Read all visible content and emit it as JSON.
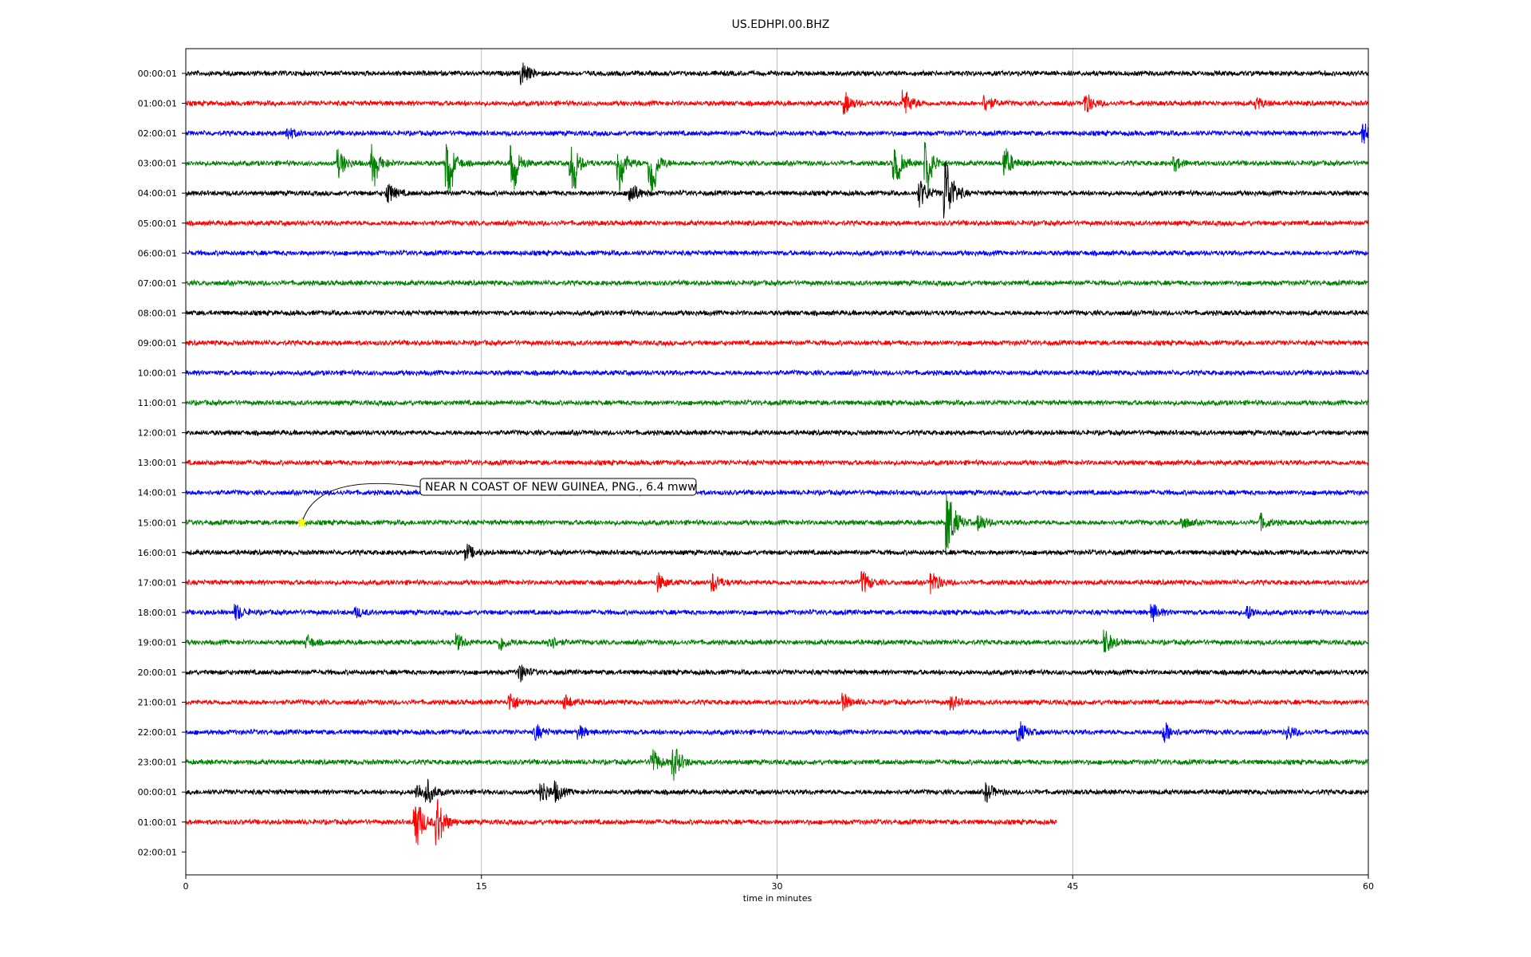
{
  "chart_data": {
    "type": "line",
    "title": "US.EDHPI.00.BHZ",
    "xlabel": "time in minutes",
    "ylabel": "",
    "xlim": [
      0,
      60
    ],
    "xticks": [
      "0",
      "15",
      "30",
      "45",
      "60"
    ],
    "x_gridlines": [
      15,
      30,
      45
    ],
    "grid": "vertical gridlines at x ticks",
    "plot_type": "dayplot (one trace per hour)",
    "colors": [
      "#000000",
      "#ff0000",
      "#0000ff",
      "#008000"
    ],
    "rows": [
      {
        "label": "00:00:01",
        "end_minute": 60,
        "color": "#000000",
        "events": [
          {
            "t": 17.1,
            "a": 14
          }
        ]
      },
      {
        "label": "01:00:01",
        "end_minute": 60,
        "color": "#ff0000",
        "events": [
          {
            "t": 33.5,
            "a": 12
          },
          {
            "t": 36.5,
            "a": 16
          },
          {
            "t": 40.6,
            "a": 10
          },
          {
            "t": 45.7,
            "a": 12
          },
          {
            "t": 54.4,
            "a": 6
          }
        ]
      },
      {
        "label": "02:00:01",
        "end_minute": 60,
        "color": "#0000ff",
        "events": [
          {
            "t": 5.2,
            "a": 7
          },
          {
            "t": 59.8,
            "a": 12
          }
        ]
      },
      {
        "label": "03:00:01",
        "end_minute": 60,
        "color": "#008000",
        "events": [
          {
            "t": 7.8,
            "a": 16
          },
          {
            "t": 9.5,
            "a": -22
          },
          {
            "t": 13.3,
            "a": -28
          },
          {
            "t": 16.6,
            "a": -24
          },
          {
            "t": 19.6,
            "a": -26
          },
          {
            "t": 22.0,
            "a": -24
          },
          {
            "t": 23.6,
            "a": -30
          },
          {
            "t": 36.0,
            "a": -22
          },
          {
            "t": 37.6,
            "a": -28
          },
          {
            "t": 41.6,
            "a": 18
          },
          {
            "t": 50.2,
            "a": 8
          }
        ]
      },
      {
        "label": "04:00:01",
        "end_minute": 60,
        "color": "#000000",
        "events": [
          {
            "t": 10.3,
            "a": 12
          },
          {
            "t": 22.6,
            "a": 14
          },
          {
            "t": 37.3,
            "a": 16
          },
          {
            "t": 38.6,
            "a": 44
          }
        ]
      },
      {
        "label": "05:00:01",
        "end_minute": 60,
        "color": "#ff0000",
        "events": []
      },
      {
        "label": "06:00:01",
        "end_minute": 60,
        "color": "#0000ff",
        "events": []
      },
      {
        "label": "07:00:01",
        "end_minute": 60,
        "color": "#008000",
        "events": []
      },
      {
        "label": "08:00:01",
        "end_minute": 60,
        "color": "#000000",
        "events": []
      },
      {
        "label": "09:00:01",
        "end_minute": 60,
        "color": "#ff0000",
        "events": []
      },
      {
        "label": "10:00:01",
        "end_minute": 60,
        "color": "#0000ff",
        "events": []
      },
      {
        "label": "11:00:01",
        "end_minute": 60,
        "color": "#008000",
        "events": []
      },
      {
        "label": "12:00:01",
        "end_minute": 60,
        "color": "#000000",
        "events": []
      },
      {
        "label": "13:00:01",
        "end_minute": 60,
        "color": "#ff0000",
        "events": []
      },
      {
        "label": "14:00:01",
        "end_minute": 60,
        "color": "#0000ff",
        "events": []
      },
      {
        "label": "15:00:01",
        "end_minute": 60,
        "color": "#008000",
        "events": [
          {
            "t": 38.7,
            "a": 40
          },
          {
            "t": 40.3,
            "a": 10
          },
          {
            "t": 50.6,
            "a": 7
          },
          {
            "t": 54.6,
            "a": 9
          }
        ]
      },
      {
        "label": "16:00:01",
        "end_minute": 60,
        "color": "#000000",
        "events": [
          {
            "t": 14.3,
            "a": 9
          }
        ]
      },
      {
        "label": "17:00:01",
        "end_minute": 60,
        "color": "#ff0000",
        "events": [
          {
            "t": 24.0,
            "a": 10
          },
          {
            "t": 26.8,
            "a": 11
          },
          {
            "t": 34.4,
            "a": 13
          },
          {
            "t": 37.9,
            "a": 14
          }
        ]
      },
      {
        "label": "18:00:01",
        "end_minute": 60,
        "color": "#0000ff",
        "events": [
          {
            "t": 2.6,
            "a": 9
          },
          {
            "t": 8.7,
            "a": 5
          },
          {
            "t": 49.1,
            "a": 9
          },
          {
            "t": 53.9,
            "a": 8
          }
        ]
      },
      {
        "label": "19:00:01",
        "end_minute": 60,
        "color": "#008000",
        "events": [
          {
            "t": 6.2,
            "a": 7
          },
          {
            "t": 13.8,
            "a": 9
          },
          {
            "t": 16.0,
            "a": 9
          },
          {
            "t": 18.5,
            "a": 9
          },
          {
            "t": 46.7,
            "a": 14
          }
        ]
      },
      {
        "label": "20:00:01",
        "end_minute": 60,
        "color": "#000000",
        "events": [
          {
            "t": 17.0,
            "a": 10
          }
        ]
      },
      {
        "label": "21:00:01",
        "end_minute": 60,
        "color": "#ff0000",
        "events": [
          {
            "t": 16.5,
            "a": 12
          },
          {
            "t": 19.3,
            "a": 8
          },
          {
            "t": 33.4,
            "a": 9
          },
          {
            "t": 38.9,
            "a": 8
          }
        ]
      },
      {
        "label": "22:00:01",
        "end_minute": 60,
        "color": "#0000ff",
        "events": [
          {
            "t": 17.8,
            "a": 9
          },
          {
            "t": 20.0,
            "a": 7
          },
          {
            "t": 42.3,
            "a": 13
          },
          {
            "t": 49.7,
            "a": 12
          },
          {
            "t": 56.0,
            "a": 7
          }
        ]
      },
      {
        "label": "23:00:01",
        "end_minute": 60,
        "color": "#008000",
        "events": [
          {
            "t": 23.7,
            "a": 16
          },
          {
            "t": 24.8,
            "a": 20
          }
        ]
      },
      {
        "label": "00:00:01",
        "end_minute": 60,
        "color": "#000000",
        "events": [
          {
            "t": 11.8,
            "a": 10
          },
          {
            "t": 12.3,
            "a": 12
          },
          {
            "t": 18.1,
            "a": 14
          },
          {
            "t": 18.8,
            "a": 10
          },
          {
            "t": 40.7,
            "a": 10
          }
        ]
      },
      {
        "label": "01:00:01",
        "end_minute": 44.2,
        "color": "#ff0000",
        "events": [
          {
            "t": 11.7,
            "a": 34
          },
          {
            "t": 12.8,
            "a": 30
          }
        ]
      },
      {
        "label": "02:00:01",
        "end_minute": 0,
        "color": "#000000",
        "events": []
      }
    ],
    "annotations": [
      {
        "text": "NEAR N COAST OF NEW GUINEA, PNG., 6.4 mww",
        "row": 15,
        "minute": 5.9,
        "marker": "star",
        "marker_color": "#ffff00"
      }
    ]
  }
}
